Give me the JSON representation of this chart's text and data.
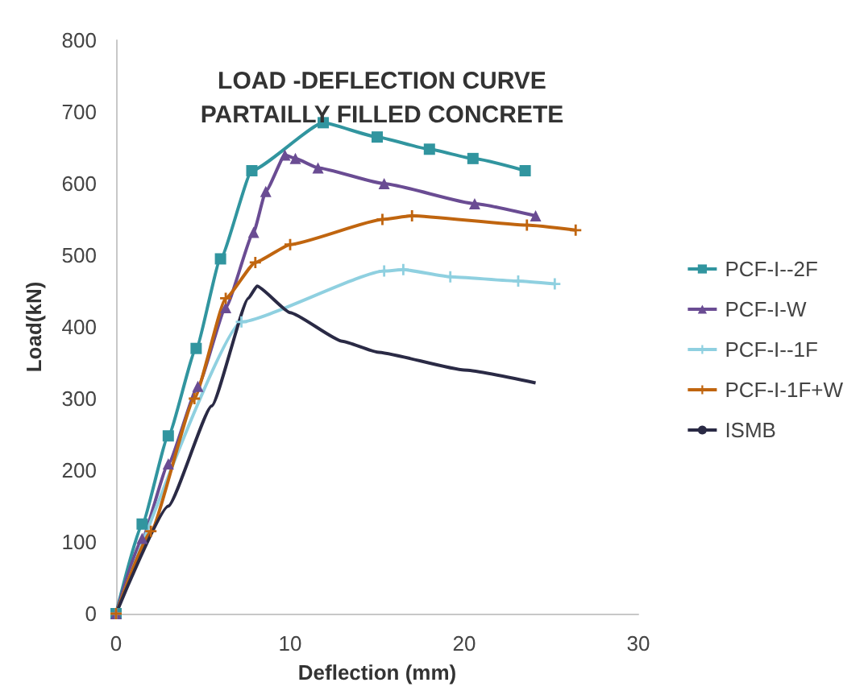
{
  "chart_data": {
    "type": "line",
    "title": "LOAD -DEFLECTION CURVE",
    "subtitle": "PARTAILLY FILLED CONCRETE",
    "xlabel": "Deflection (mm)",
    "ylabel": "Load(kN)",
    "xlim": [
      0,
      30
    ],
    "xticks": [
      0,
      10,
      20,
      30
    ],
    "ylim": [
      0,
      800
    ],
    "yticks": [
      0,
      100,
      200,
      300,
      400,
      500,
      600,
      700,
      800
    ],
    "grid": false,
    "legend": "right",
    "series": [
      {
        "name": "PCF-I--2F",
        "color": "#31959f",
        "marker": "square",
        "x": [
          0,
          1.5,
          3,
          4.6,
          6,
          7.8,
          11.9,
          15,
          18,
          20.5,
          23.5
        ],
        "values": [
          0,
          125,
          248,
          370,
          495,
          618,
          685,
          665,
          648,
          635,
          618
        ]
      },
      {
        "name": "PCF-I-W",
        "color": "#6a4c93",
        "marker": "triangle",
        "x": [
          0,
          1.5,
          3,
          4.7,
          6.3,
          7.9,
          8.6,
          9.7,
          10.3,
          11.6,
          15.4,
          20.6,
          24.1
        ],
        "values": [
          0,
          105,
          209,
          317,
          427,
          532,
          589,
          640,
          635,
          622,
          600,
          572,
          555
        ]
      },
      {
        "name": "PCF-I--1F",
        "color": "#8fd0e0",
        "marker": "cross",
        "x": [
          0,
          7.2,
          15.4,
          16.5,
          19.2,
          23.1,
          25.2
        ],
        "values": [
          0,
          407,
          478,
          480,
          470,
          464,
          460
        ]
      },
      {
        "name": "PCF-I-1F+W",
        "color": "#c0650f",
        "marker": "cross",
        "x": [
          0,
          2,
          4.5,
          6.3,
          8,
          10,
          15.3,
          17,
          23.6,
          26.4
        ],
        "values": [
          0,
          115,
          300,
          440,
          490,
          515,
          550,
          555,
          542,
          535
        ]
      },
      {
        "name": "ISMB",
        "color": "#2a2a45",
        "marker": "none",
        "x": [
          0,
          3,
          5.5,
          7.6,
          8.1,
          10,
          13,
          15,
          20,
          24.1
        ],
        "values": [
          0,
          150,
          290,
          440,
          457,
          420,
          380,
          365,
          340,
          322
        ]
      }
    ]
  }
}
